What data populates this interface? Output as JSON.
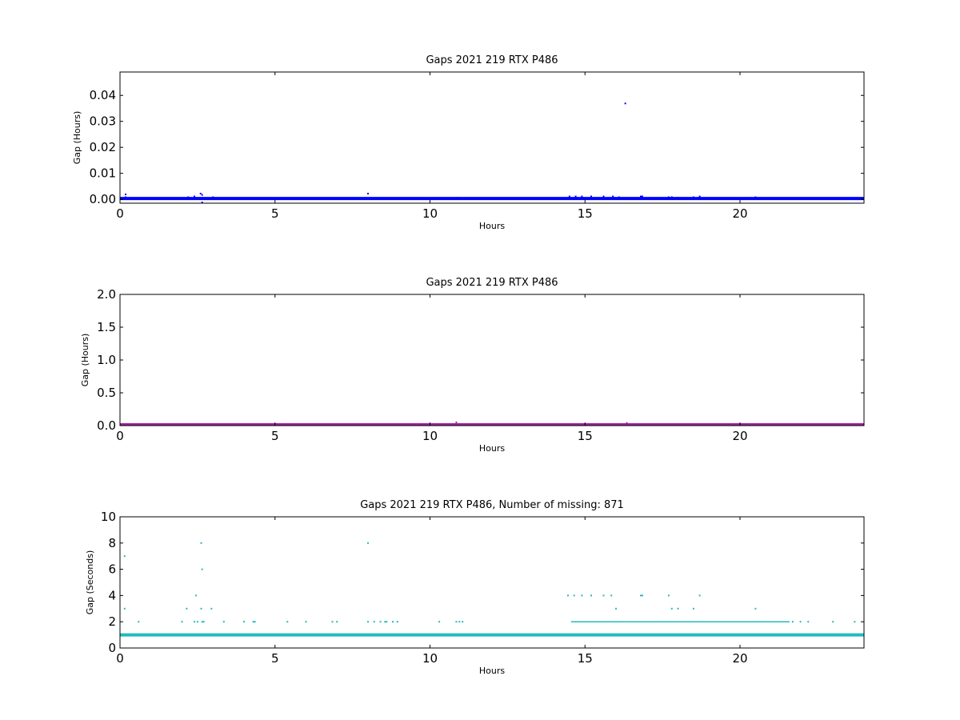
{
  "chart_data": [
    {
      "type": "scatter",
      "title": "Gaps 2021 219 RTX  P486",
      "xlabel": "Hours",
      "ylabel": "Gap (Hours)",
      "xlim": [
        0,
        24
      ],
      "ylim": [
        -0.0015,
        0.049
      ],
      "xticks": [
        0,
        5,
        10,
        15,
        20
      ],
      "yticks": [
        0.0,
        0.01,
        0.02,
        0.03,
        0.04
      ],
      "ytick_labels": [
        "0.00",
        "0.01",
        "0.02",
        "0.03",
        "0.04"
      ],
      "grid": false,
      "color": "#0000ff",
      "baseline": {
        "y": 0.0003,
        "x": [
          0,
          24
        ]
      },
      "points": [
        [
          0.18,
          0.0019
        ],
        [
          0.18,
          0.0008
        ],
        [
          2.2,
          0.0008
        ],
        [
          2.4,
          0.0011
        ],
        [
          2.6,
          0.0022
        ],
        [
          2.65,
          0.0017
        ],
        [
          2.65,
          -0.0012
        ],
        [
          3.0,
          0.0008
        ],
        [
          8.0,
          0.0022
        ],
        [
          10.9,
          0.0006
        ],
        [
          14.5,
          0.0011
        ],
        [
          14.7,
          0.0011
        ],
        [
          14.9,
          0.0011
        ],
        [
          15.2,
          0.0011
        ],
        [
          15.6,
          0.0011
        ],
        [
          15.9,
          0.0011
        ],
        [
          16.1,
          0.0008
        ],
        [
          16.3,
          0.0369
        ],
        [
          16.8,
          0.0011
        ],
        [
          16.85,
          0.0011
        ],
        [
          17.7,
          0.0008
        ],
        [
          17.8,
          0.0008
        ],
        [
          18.0,
          0.0006
        ],
        [
          18.5,
          0.0008
        ],
        [
          18.7,
          0.0011
        ],
        [
          20.5,
          0.0008
        ]
      ]
    },
    {
      "type": "scatter",
      "title": "Gaps 2021 219 RTX  P486",
      "xlabel": "Hours",
      "ylabel": "Gap (Hours)",
      "xlim": [
        0,
        24
      ],
      "ylim": [
        0,
        2
      ],
      "xticks": [
        0,
        5,
        10,
        15,
        20
      ],
      "yticks": [
        0.0,
        0.5,
        1.0,
        1.5,
        2.0
      ],
      "ytick_labels": [
        "0.0",
        "0.5",
        "1.0",
        "1.5",
        "2.0"
      ],
      "grid": false,
      "color": "#a020a0",
      "baseline": {
        "y": 0.012,
        "x": [
          0,
          24
        ]
      },
      "points": [
        [
          10.85,
          0.05
        ],
        [
          16.35,
          0.04
        ]
      ]
    },
    {
      "type": "scatter",
      "title": "Gaps 2021 219 RTX  P486, Number of missing: 871",
      "xlabel": "Hours",
      "ylabel": "Gap (Seconds)",
      "xlim": [
        0,
        24
      ],
      "ylim": [
        0,
        10
      ],
      "xticks": [
        0,
        5,
        10,
        15,
        20
      ],
      "yticks": [
        0,
        2,
        4,
        6,
        8,
        10
      ],
      "ytick_labels": [
        "0",
        "2",
        "4",
        "6",
        "8",
        "10"
      ],
      "grid": false,
      "color": "#22bbbb",
      "baseline": {
        "y": 1,
        "x": [
          0,
          24
        ]
      },
      "segments": [
        {
          "y": 2,
          "x": [
            14.55,
            16.3
          ]
        },
        {
          "y": 2,
          "x": [
            16.3,
            21.6
          ]
        }
      ],
      "points": [
        [
          0.15,
          7
        ],
        [
          0.15,
          3
        ],
        [
          0.6,
          2
        ],
        [
          2.0,
          2
        ],
        [
          2.15,
          3
        ],
        [
          2.4,
          2
        ],
        [
          2.45,
          4
        ],
        [
          2.5,
          2
        ],
        [
          2.62,
          8
        ],
        [
          2.62,
          3
        ],
        [
          2.65,
          6
        ],
        [
          2.65,
          2
        ],
        [
          2.7,
          2
        ],
        [
          2.95,
          3
        ],
        [
          3.35,
          2
        ],
        [
          4.0,
          2
        ],
        [
          4.3,
          2
        ],
        [
          4.35,
          2
        ],
        [
          5.4,
          2
        ],
        [
          6.0,
          2
        ],
        [
          6.85,
          2
        ],
        [
          7.0,
          2
        ],
        [
          8.0,
          8
        ],
        [
          8.0,
          2
        ],
        [
          8.2,
          2
        ],
        [
          8.4,
          2
        ],
        [
          8.55,
          2
        ],
        [
          8.6,
          2
        ],
        [
          8.8,
          2
        ],
        [
          8.95,
          2
        ],
        [
          10.3,
          2
        ],
        [
          10.85,
          2
        ],
        [
          10.95,
          2
        ],
        [
          11.05,
          2
        ],
        [
          14.45,
          4
        ],
        [
          14.65,
          4
        ],
        [
          14.9,
          4
        ],
        [
          15.2,
          4
        ],
        [
          15.6,
          4
        ],
        [
          15.85,
          4
        ],
        [
          16.0,
          3
        ],
        [
          16.8,
          4
        ],
        [
          16.85,
          4
        ],
        [
          17.7,
          4
        ],
        [
          17.8,
          3
        ],
        [
          18.0,
          3
        ],
        [
          18.5,
          3
        ],
        [
          18.7,
          4
        ],
        [
          20.5,
          3
        ],
        [
          21.7,
          2
        ],
        [
          21.95,
          2
        ],
        [
          22.2,
          2
        ],
        [
          23.0,
          2
        ],
        [
          23.7,
          2
        ]
      ]
    }
  ]
}
